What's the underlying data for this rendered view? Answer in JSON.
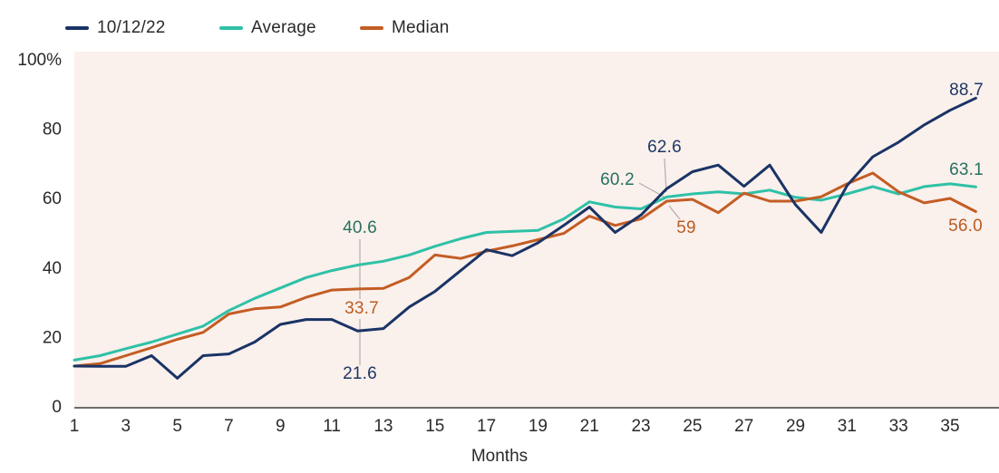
{
  "legend": [
    {
      "label": "10/12/22",
      "color": "#1a3365",
      "label_color": "#1d3765"
    },
    {
      "label": "Average",
      "color": "#2fc1a7",
      "label_color": "#267161"
    },
    {
      "label": "Median",
      "color": "#c35d24",
      "label_color": "#bc5b1e"
    }
  ],
  "chart_data": {
    "type": "line",
    "title": "",
    "xlabel": "Months",
    "ylabel": "",
    "x": [
      1,
      2,
      3,
      4,
      5,
      6,
      7,
      8,
      9,
      10,
      11,
      12,
      13,
      14,
      15,
      16,
      17,
      18,
      19,
      20,
      21,
      22,
      23,
      24,
      25,
      26,
      27,
      28,
      29,
      30,
      31,
      32,
      33,
      34,
      35,
      36
    ],
    "x_tick_labels": [
      "1",
      "3",
      "5",
      "7",
      "9",
      "11",
      "13",
      "15",
      "17",
      "19",
      "21",
      "23",
      "25",
      "27",
      "29",
      "31",
      "33",
      "35"
    ],
    "x_tick_months": [
      1,
      3,
      5,
      7,
      9,
      11,
      13,
      15,
      17,
      19,
      21,
      23,
      25,
      27,
      29,
      31,
      33,
      35
    ],
    "y_tick_labels": [
      "100%",
      "80",
      "60",
      "40",
      "20",
      "0"
    ],
    "y_tick_values": [
      100,
      80,
      60,
      40,
      20,
      0
    ],
    "ylim": [
      0,
      100
    ],
    "grid": false,
    "legend_position": "top-left",
    "plot_background": "#faf0ec",
    "axis_color": "#3f3f3f",
    "leader_line_color": "#b3aeac",
    "series": [
      {
        "name": "10/12/22",
        "color": "#1a3365",
        "values": [
          11.5,
          11.4,
          11.4,
          14.5,
          8.0,
          14.5,
          15.0,
          18.4,
          23.5,
          24.9,
          24.9,
          21.6,
          22.3,
          28.5,
          33.0,
          39.0,
          45.0,
          43.3,
          47.0,
          52.0,
          57.3,
          50.0,
          55.0,
          62.6,
          67.5,
          69.4,
          63.3,
          69.4,
          58.0,
          50.0,
          63.5,
          71.8,
          76.0,
          81.0,
          85.2,
          88.7
        ]
      },
      {
        "name": "Average",
        "color": "#2fc1a7",
        "values": [
          13.2,
          14.5,
          16.5,
          18.4,
          20.7,
          23.0,
          27.5,
          31.0,
          34.0,
          37.0,
          39.0,
          40.6,
          41.7,
          43.5,
          46.0,
          48.2,
          50.0,
          50.3,
          50.6,
          53.9,
          58.8,
          57.3,
          56.8,
          60.2,
          61.1,
          61.7,
          61.1,
          62.2,
          60.1,
          59.3,
          61.1,
          63.2,
          61.1,
          63.2,
          64.0,
          63.1
        ]
      },
      {
        "name": "Median",
        "color": "#c35d24",
        "values": [
          11.5,
          12.2,
          14.5,
          16.8,
          19.2,
          21.2,
          26.5,
          28.0,
          28.5,
          31.3,
          33.4,
          33.7,
          33.9,
          37.0,
          43.5,
          42.5,
          44.6,
          46.1,
          47.9,
          49.7,
          54.7,
          52.0,
          53.9,
          59.0,
          59.5,
          55.7,
          61.3,
          59.0,
          59.0,
          60.3,
          64.0,
          67.1,
          61.7,
          58.5,
          59.8,
          56.0
        ]
      }
    ],
    "annotations": [
      {
        "series": "Average",
        "month": 12,
        "text": "40.6"
      },
      {
        "series": "Median",
        "month": 12,
        "text": "33.7"
      },
      {
        "series": "10/12/22",
        "month": 12,
        "text": "21.6"
      },
      {
        "series": "10/12/22",
        "month": 24,
        "text": "62.6"
      },
      {
        "series": "Average",
        "month": 24,
        "text": "60.2"
      },
      {
        "series": "Median",
        "month": 24,
        "text": "59"
      },
      {
        "series": "10/12/22",
        "month": 36,
        "text": "88.7"
      },
      {
        "series": "Average",
        "month": 36,
        "text": "63.1"
      },
      {
        "series": "Median",
        "month": 36,
        "text": "56.0"
      }
    ]
  }
}
